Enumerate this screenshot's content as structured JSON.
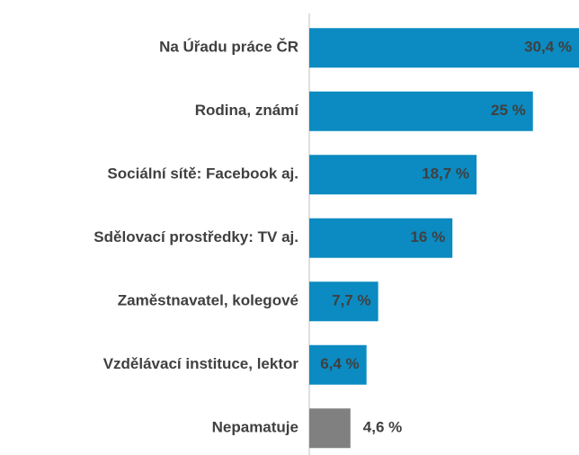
{
  "chart_data": {
    "type": "hbar",
    "categories": [
      "Na Úřadu práce ČR",
      "Rodina, známí",
      "Sociální sítě: Facebook aj.",
      "Sdělovací prostředky: TV aj.",
      "Zaměstnavatel, kolegové",
      "Vzdělávací instituce, lektor",
      "Nepamatuje"
    ],
    "values": [
      30.4,
      25,
      18.7,
      16,
      7.7,
      6.4,
      4.6
    ],
    "value_labels": [
      "30,4 %",
      "25 %",
      "18,7 %",
      "16 %",
      "7,7 %",
      "6,4 %",
      "4,6 %"
    ],
    "colors": [
      "#0b8bc1",
      "#0b8bc1",
      "#0b8bc1",
      "#0b8bc1",
      "#0b8bc1",
      "#0b8bc1",
      "#808080"
    ]
  }
}
